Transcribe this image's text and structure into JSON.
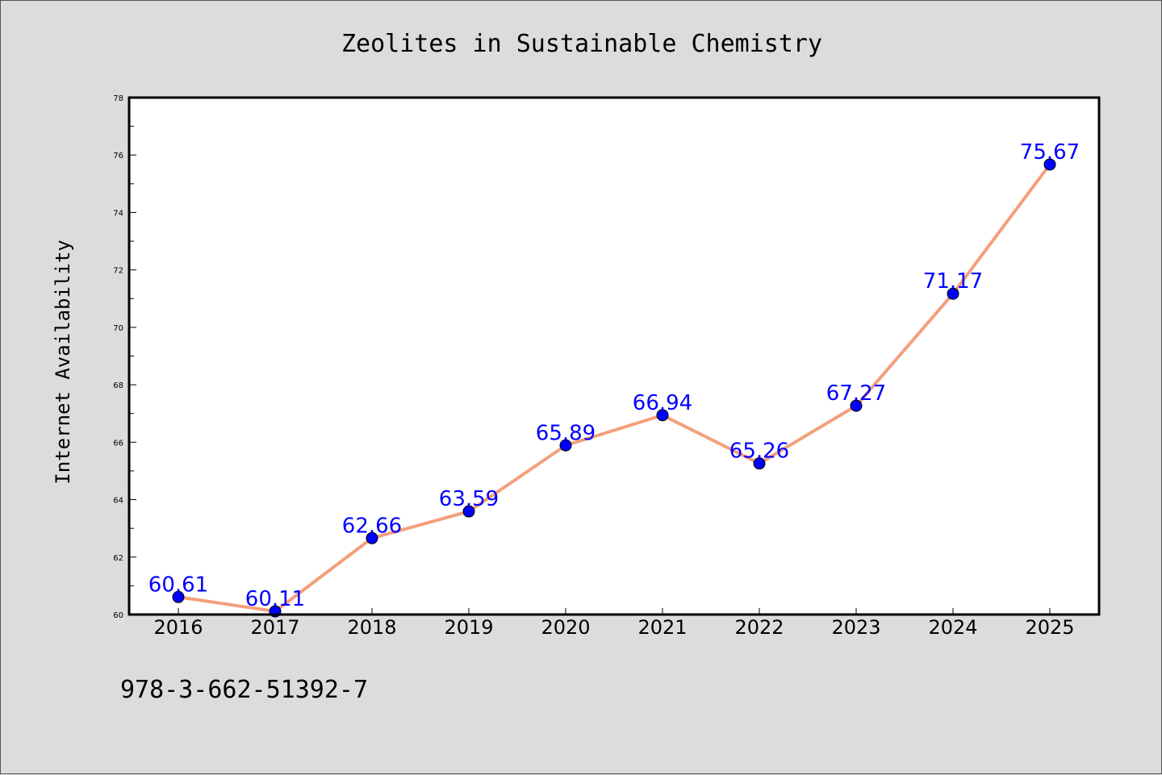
{
  "chart_data": {
    "type": "line",
    "title": "Zeolites in Sustainable Chemistry",
    "xlabel": "",
    "ylabel": "Internet Availability",
    "categories": [
      "2016",
      "2017",
      "2018",
      "2019",
      "2020",
      "2021",
      "2022",
      "2023",
      "2024",
      "2025"
    ],
    "series": [
      {
        "values": [
          60.61,
          60.11,
          62.66,
          63.59,
          65.89,
          66.94,
          65.26,
          67.27,
          71.17,
          75.67
        ],
        "labels": [
          "60.61",
          "60.11",
          "62.66",
          "63.59",
          "65.89",
          "66.94",
          "65.26",
          "67.27",
          "71.17",
          "75.67"
        ]
      }
    ],
    "ylim": [
      60,
      78
    ],
    "yticks": [
      "60",
      "62",
      "64",
      "66",
      "68",
      "70",
      "72",
      "74",
      "76",
      "78"
    ],
    "grid": false,
    "legend": "none",
    "colors": {
      "line": "#f4a07c",
      "marker": "#0000ff",
      "label": "#0000ff",
      "background": "#dcdcdc",
      "plot_background": "#ffffff"
    }
  },
  "footer": {
    "isbn": "978-3-662-51392-7"
  }
}
